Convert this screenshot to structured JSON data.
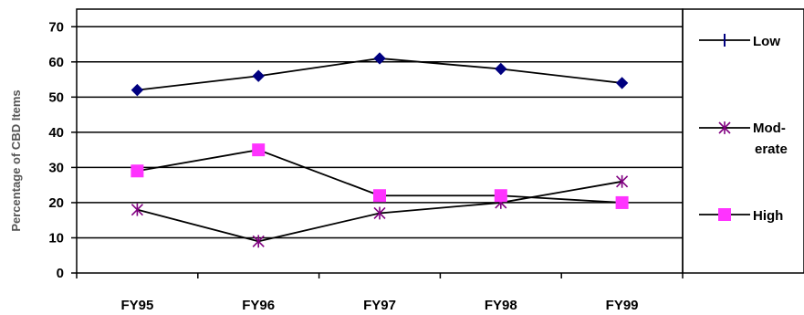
{
  "chart_data": {
    "type": "line",
    "categories": [
      "FY95",
      "FY96",
      "FY97",
      "FY98",
      "FY99"
    ],
    "ylabel": "Percentage of CBD Items",
    "ylim": [
      0,
      70
    ],
    "yticks": [
      "0",
      "10",
      "20",
      "30",
      "40",
      "50",
      "60",
      "70"
    ],
    "grid": true,
    "legend_position": "right",
    "series": [
      {
        "name": "Low",
        "legend_lines": [
          "Low"
        ],
        "marker": "diamond",
        "color": "#000080",
        "values": [
          52,
          56,
          61,
          58,
          54
        ]
      },
      {
        "name": "Mod-erate",
        "legend_lines": [
          "Mod-",
          "erate"
        ],
        "marker": "asterisk",
        "color": "#800080",
        "values": [
          18,
          9,
          17,
          20,
          26
        ]
      },
      {
        "name": "High",
        "legend_lines": [
          "High"
        ],
        "marker": "square",
        "color": "#ff33ff",
        "values": [
          29,
          35,
          22,
          22,
          20
        ]
      }
    ]
  }
}
